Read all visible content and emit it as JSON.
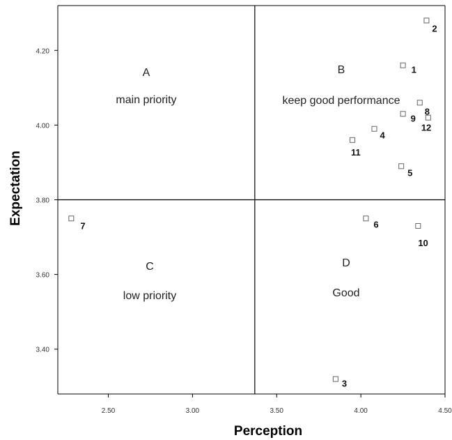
{
  "chart_data": {
    "type": "scatter",
    "xlabel": "Perception",
    "ylabel": "Expectation",
    "xlim": [
      2.2,
      4.5
    ],
    "ylim": [
      3.28,
      4.32
    ],
    "x_ticks": [
      2.5,
      3.0,
      3.5,
      4.0,
      4.5
    ],
    "x_tick_labels": [
      "2.50",
      "3.00",
      "3.50",
      "4.00",
      "4.50"
    ],
    "y_ticks": [
      3.4,
      3.6,
      3.8,
      4.0,
      4.2
    ],
    "y_tick_labels": [
      "3.40",
      "3.60",
      "3.80",
      "4.00",
      "4.20"
    ],
    "reference_lines": {
      "x": 3.37,
      "y": 3.8
    },
    "points": [
      {
        "label": "1",
        "x": 4.25,
        "y": 4.16
      },
      {
        "label": "2",
        "x": 4.39,
        "y": 4.28
      },
      {
        "label": "3",
        "x": 3.85,
        "y": 3.32
      },
      {
        "label": "4",
        "x": 4.08,
        "y": 3.99
      },
      {
        "label": "5",
        "x": 4.24,
        "y": 3.89
      },
      {
        "label": "6",
        "x": 4.03,
        "y": 3.75
      },
      {
        "label": "7",
        "x": 2.28,
        "y": 3.75
      },
      {
        "label": "8",
        "x": 4.35,
        "y": 4.06
      },
      {
        "label": "9",
        "x": 4.25,
        "y": 4.03
      },
      {
        "label": "10",
        "x": 4.34,
        "y": 3.73
      },
      {
        "label": "11",
        "x": 3.95,
        "y": 3.96
      },
      {
        "label": "12",
        "x": 4.4,
        "y": 4.02
      }
    ],
    "quadrants": [
      {
        "letter": "A",
        "description": "main priority"
      },
      {
        "letter": "B",
        "description": "keep good performance"
      },
      {
        "letter": "C",
        "description": "low priority"
      },
      {
        "letter": "D",
        "description": "Good"
      }
    ],
    "marker": "hollow-square",
    "marker_color": "#666666"
  }
}
